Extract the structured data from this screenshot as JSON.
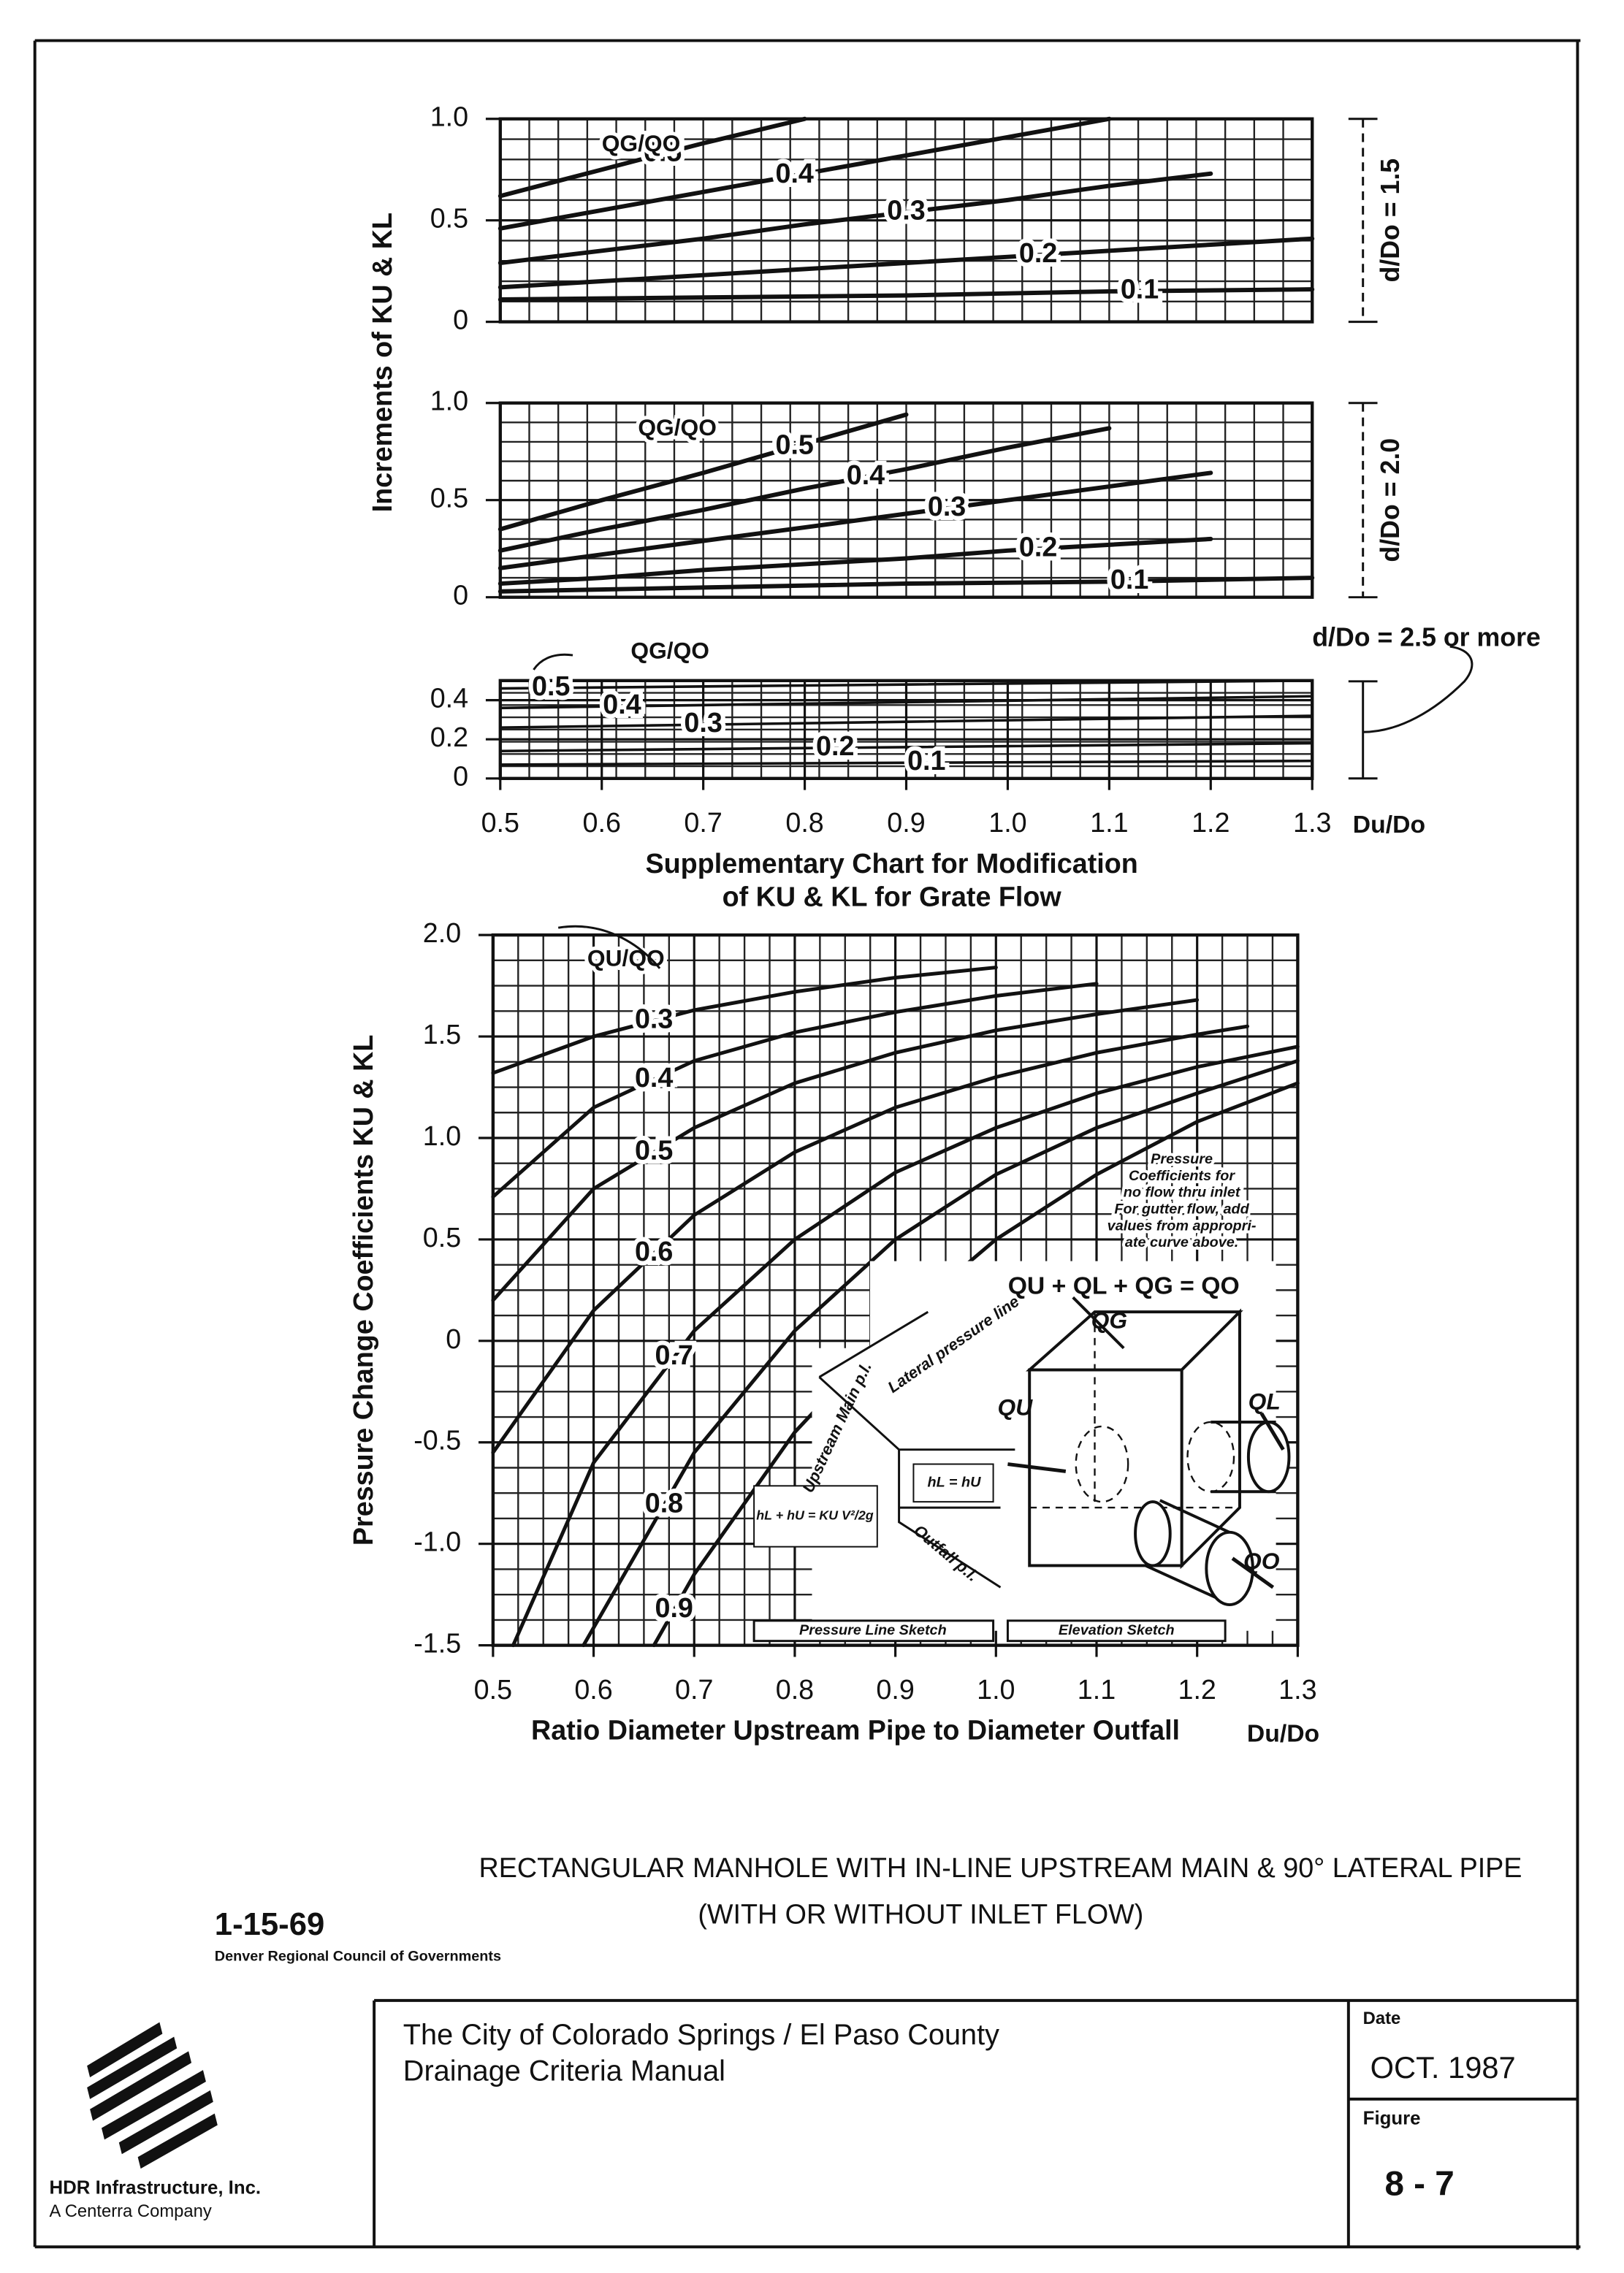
{
  "chart_data": [
    {
      "type": "line",
      "ylabel": "Increments of KU & KL",
      "condition": "d/Do = 1.5",
      "legend_title": "QG/QO",
      "xlim": [
        0.5,
        1.3
      ],
      "ylim": [
        0,
        1
      ],
      "yticks": [
        {
          "value": 1,
          "label": "1.0"
        },
        0.5,
        0
      ],
      "series": [
        {
          "name": "0.5",
          "color": "#111",
          "x": [
            0.5,
            0.6,
            0.7,
            0.8
          ],
          "values": [
            0.62,
            0.75,
            0.88,
            1.0
          ]
        },
        {
          "name": "0.4",
          "color": "#111",
          "x": [
            0.5,
            0.6,
            0.7,
            0.8,
            0.9,
            1.0,
            1.1
          ],
          "values": [
            0.46,
            0.55,
            0.64,
            0.73,
            0.82,
            0.91,
            1.0
          ]
        },
        {
          "name": "0.3",
          "color": "#111",
          "x": [
            0.5,
            0.6,
            0.7,
            0.8,
            0.9,
            1.0,
            1.1,
            1.2
          ],
          "values": [
            0.29,
            0.35,
            0.41,
            0.48,
            0.54,
            0.6,
            0.67,
            0.73
          ]
        },
        {
          "name": "0.2",
          "color": "#111",
          "x": [
            0.5,
            0.6,
            0.7,
            0.8,
            0.9,
            1.0,
            1.1,
            1.2,
            1.3
          ],
          "values": [
            0.17,
            0.2,
            0.23,
            0.26,
            0.29,
            0.32,
            0.35,
            0.38,
            0.41
          ]
        },
        {
          "name": "0.1",
          "color": "#111",
          "x": [
            0.5,
            0.7,
            0.9,
            1.1,
            1.3
          ],
          "values": [
            0.11,
            0.12,
            0.13,
            0.15,
            0.16
          ]
        }
      ]
    },
    {
      "type": "line",
      "condition": "d/Do = 2.0",
      "legend_title": "QG/QO",
      "xlim": [
        0.5,
        1.3
      ],
      "ylim": [
        0,
        1
      ],
      "yticks": [
        {
          "value": 1,
          "label": "1.0"
        },
        0.5,
        0
      ],
      "series": [
        {
          "name": "0.5",
          "color": "#111",
          "x": [
            0.5,
            0.6,
            0.7,
            0.8,
            0.9
          ],
          "values": [
            0.35,
            0.5,
            0.64,
            0.79,
            0.94
          ]
        },
        {
          "name": "0.4",
          "color": "#111",
          "x": [
            0.5,
            0.6,
            0.7,
            0.8,
            0.9,
            1.0,
            1.1
          ],
          "values": [
            0.24,
            0.35,
            0.45,
            0.56,
            0.66,
            0.77,
            0.87
          ]
        },
        {
          "name": "0.3",
          "color": "#111",
          "x": [
            0.5,
            0.6,
            0.7,
            0.8,
            0.9,
            1.0,
            1.1,
            1.2
          ],
          "values": [
            0.15,
            0.22,
            0.29,
            0.36,
            0.43,
            0.5,
            0.57,
            0.64
          ]
        },
        {
          "name": "0.2",
          "color": "#111",
          "x": [
            0.5,
            0.6,
            0.7,
            0.8,
            0.9,
            1.0,
            1.1,
            1.2
          ],
          "values": [
            0.07,
            0.1,
            0.14,
            0.17,
            0.2,
            0.24,
            0.27,
            0.3
          ]
        },
        {
          "name": "0.1",
          "color": "#111",
          "x": [
            0.5,
            0.7,
            0.9,
            1.1,
            1.3
          ],
          "values": [
            0.03,
            0.05,
            0.07,
            0.08,
            0.1
          ]
        }
      ]
    },
    {
      "type": "line",
      "condition": "d/Do = 2.5 or more",
      "legend_title": "QG/QO",
      "title": [
        "Supplementary Chart for Modification",
        "of KU & KL for Grate Flow"
      ],
      "x_symbol": "Du/Do",
      "xlim": [
        0.5,
        1.3
      ],
      "ylim": [
        0,
        0.5
      ],
      "yticks": [
        0.4,
        0.2,
        0
      ],
      "xticks": [
        0.5,
        0.6,
        0.7,
        0.8,
        0.9,
        {
          "value": 1,
          "label": "1.0"
        },
        1.1,
        1.2,
        1.3
      ],
      "series": [
        {
          "name": "0.5",
          "color": "#111",
          "x": [
            0.5,
            0.9,
            1.3
          ],
          "values": [
            0.46,
            0.48,
            0.5
          ]
        },
        {
          "name": "0.4",
          "color": "#111",
          "x": [
            0.5,
            0.9,
            1.3
          ],
          "values": [
            0.36,
            0.39,
            0.42
          ]
        },
        {
          "name": "0.3",
          "color": "#111",
          "x": [
            0.5,
            0.9,
            1.3
          ],
          "values": [
            0.26,
            0.29,
            0.32
          ]
        },
        {
          "name": "0.2",
          "color": "#111",
          "x": [
            0.5,
            0.9,
            1.3
          ],
          "values": [
            0.14,
            0.16,
            0.18
          ]
        },
        {
          "name": "0.1",
          "color": "#111",
          "x": [
            0.5,
            0.9,
            1.3
          ],
          "values": [
            0.07,
            0.08,
            0.09
          ]
        }
      ]
    },
    {
      "type": "line",
      "ylabel": "Pressure Change Coefficients KU & KL",
      "xlabel": "Ratio Diameter Upstream Pipe to Diameter Outfall",
      "x_symbol": "Du/Do",
      "legend_title": "QU/QO",
      "xlim": [
        0.5,
        1.3
      ],
      "ylim": [
        -1.5,
        2.0
      ],
      "yticks": [
        {
          "value": 2,
          "label": "2.0"
        },
        1.5,
        {
          "value": 1,
          "label": "1.0"
        },
        0.5,
        0,
        -0.5,
        {
          "value": -1,
          "label": "-1.0"
        },
        -1.5
      ],
      "xticks": [
        0.5,
        0.6,
        0.7,
        0.8,
        0.9,
        {
          "value": 1,
          "label": "1.0"
        },
        1.1,
        1.2,
        1.3
      ],
      "series": [
        {
          "name": "0.3",
          "color": "#111",
          "x": [
            0.5,
            0.6,
            0.7,
            0.8,
            0.9,
            1.0
          ],
          "values": [
            1.32,
            1.5,
            1.63,
            1.72,
            1.79,
            1.84
          ]
        },
        {
          "name": "0.4",
          "color": "#111",
          "x": [
            0.5,
            0.6,
            0.7,
            0.8,
            0.9,
            1.0,
            1.1
          ],
          "values": [
            0.71,
            1.15,
            1.38,
            1.52,
            1.62,
            1.7,
            1.76
          ]
        },
        {
          "name": "0.5",
          "color": "#111",
          "x": [
            0.5,
            0.6,
            0.7,
            0.8,
            0.9,
            1.0,
            1.1,
            1.2
          ],
          "values": [
            0.2,
            0.75,
            1.05,
            1.27,
            1.42,
            1.53,
            1.61,
            1.68
          ]
        },
        {
          "name": "0.6",
          "color": "#111",
          "x": [
            0.5,
            0.6,
            0.7,
            0.8,
            0.9,
            1.0,
            1.1,
            1.2,
            1.25
          ],
          "values": [
            -0.55,
            0.15,
            0.62,
            0.93,
            1.15,
            1.3,
            1.42,
            1.51,
            1.55
          ]
        },
        {
          "name": "0.7",
          "color": "#111",
          "x": [
            0.52,
            0.6,
            0.7,
            0.8,
            0.9,
            1.0,
            1.1,
            1.2,
            1.3
          ],
          "values": [
            -1.5,
            -0.6,
            0.05,
            0.5,
            0.83,
            1.05,
            1.22,
            1.35,
            1.45
          ]
        },
        {
          "name": "0.8",
          "color": "#111",
          "x": [
            0.59,
            0.7,
            0.8,
            0.9,
            1.0,
            1.1,
            1.2,
            1.3
          ],
          "values": [
            -1.5,
            -0.55,
            0.05,
            0.5,
            0.82,
            1.05,
            1.22,
            1.38
          ]
        },
        {
          "name": "0.9",
          "color": "#111",
          "x": [
            0.66,
            0.7,
            0.8,
            0.9,
            1.0,
            1.1,
            1.2,
            1.3
          ],
          "values": [
            -1.5,
            -1.15,
            -0.45,
            0.08,
            0.5,
            0.82,
            1.08,
            1.27
          ]
        }
      ],
      "note": [
        "Pressure",
        "Coefficients for",
        "no flow thru inlet",
        "For gutter flow, add",
        "values from appropri-",
        "ate curve above."
      ],
      "equation": "QU + QL + QG = QO",
      "sketch_labels": [
        "QG",
        "QU",
        "QL",
        "QO",
        "Upstream Main p.l.",
        "Lateral pressure line",
        "hL = hU",
        "hL + hU = KU V²/2g",
        "Outfall p.l.",
        "Pressure Line Sketch",
        "Elevation Sketch"
      ]
    }
  ],
  "document": {
    "caption": [
      "RECTANGULAR MANHOLE WITH IN-LINE UPSTREAM MAIN & 90° LATERAL PIPE",
      "(WITH OR WITHOUT INLET FLOW)"
    ],
    "date_code": "1-15-69",
    "agency": "Denver Regional Council of Governments",
    "company": [
      "HDR Infrastructure, Inc.",
      "A Centerra Company"
    ],
    "manual": [
      "The City of Colorado Springs / El Paso County",
      "Drainage Criteria Manual"
    ],
    "date_label": "Date",
    "date": "OCT. 1987",
    "figure_label": "Figure",
    "figure": "8 - 7"
  }
}
